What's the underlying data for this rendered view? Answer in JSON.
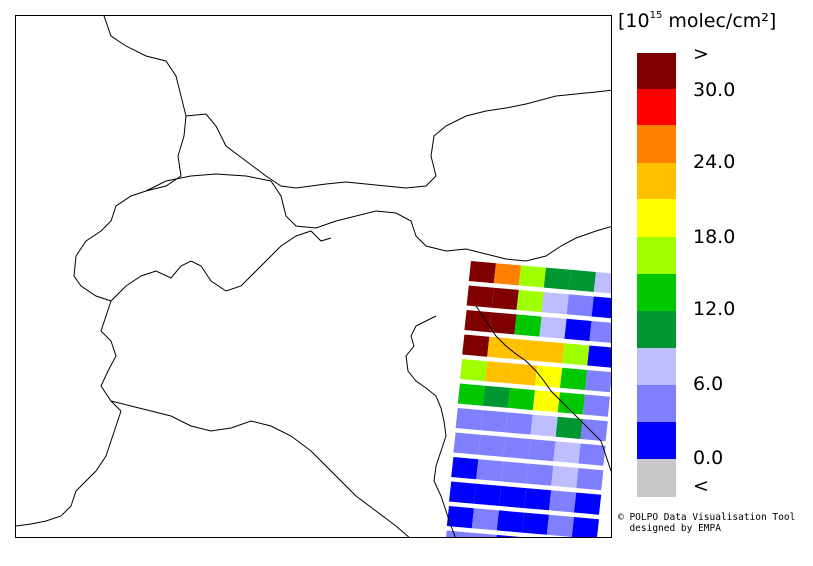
{
  "legend": {
    "title_prefix": "[10",
    "title_exponent": "15",
    "title_unit": " molec/cm²]",
    "labels": [
      ">",
      "30.0",
      "24.0",
      "18.0",
      "12.0",
      "6.0",
      "0.0",
      "<"
    ],
    "bins": [
      {
        "color": "#800000"
      },
      {
        "color": "#ff0000"
      },
      {
        "color": "#ff8000"
      },
      {
        "color": "#ffc000"
      },
      {
        "color": "#ffff00"
      },
      {
        "color": "#a0ff00"
      },
      {
        "color": "#00c800"
      },
      {
        "color": "#009632"
      },
      {
        "color": "#bebeff"
      },
      {
        "color": "#8080ff"
      },
      {
        "color": "#0000ff"
      },
      {
        "color": "#c8c8c8"
      }
    ]
  },
  "credit": {
    "line1": "© POLPO Data Visualisation Tool",
    "line2": "  designed by EMPA"
  }
}
